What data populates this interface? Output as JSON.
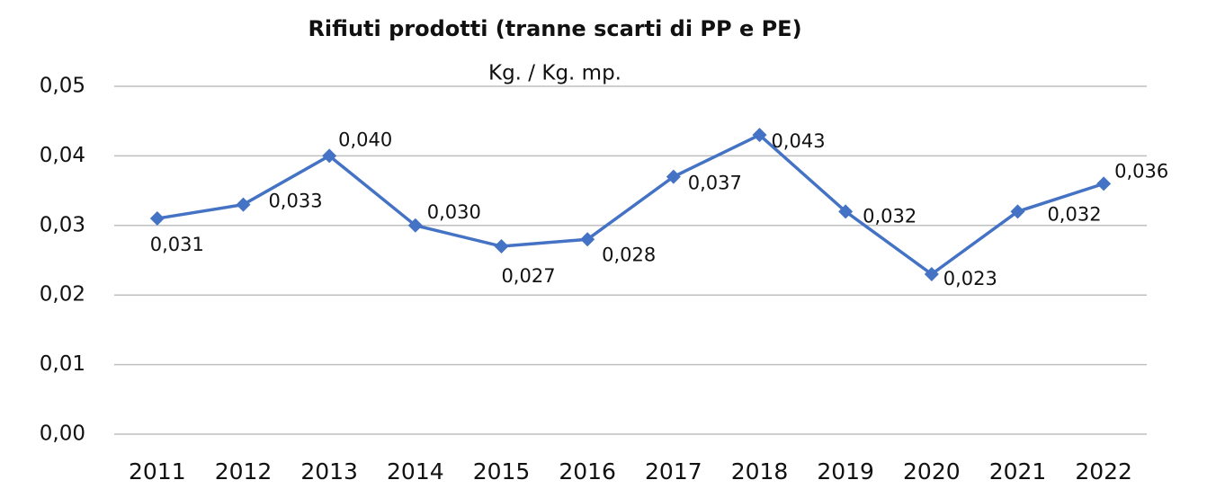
{
  "chart_data": {
    "type": "line",
    "title": "Rifiuti prodotti (tranne scarti di PP e PE)",
    "subtitle": "Kg. / Kg. mp.",
    "categories": [
      "2011",
      "2012",
      "2013",
      "2014",
      "2015",
      "2016",
      "2017",
      "2018",
      "2019",
      "2020",
      "2021",
      "2022"
    ],
    "series": [
      {
        "name": "Rifiuti prodotti",
        "color": "#4472c4",
        "values": [
          0.031,
          0.033,
          0.04,
          0.03,
          0.027,
          0.028,
          0.037,
          0.043,
          0.032,
          0.023,
          0.032,
          0.036
        ],
        "value_labels": [
          "0,031",
          "0,033",
          "0,040",
          "0,030",
          "0,027",
          "0,028",
          "0,037",
          "0,043",
          "0,032",
          "0,023",
          "0,032",
          "0,036"
        ]
      }
    ],
    "ylim": [
      0,
      0.05
    ],
    "yticks": [
      {
        "value": 0,
        "label": "0,00"
      },
      {
        "value": 0.01,
        "label": "0,01"
      },
      {
        "value": 0.02,
        "label": "0,02"
      },
      {
        "value": 0.03,
        "label": "0,03"
      },
      {
        "value": 0.04,
        "label": "0,04"
      },
      {
        "value": 0.05,
        "label": "0,05"
      }
    ],
    "grid": true
  }
}
